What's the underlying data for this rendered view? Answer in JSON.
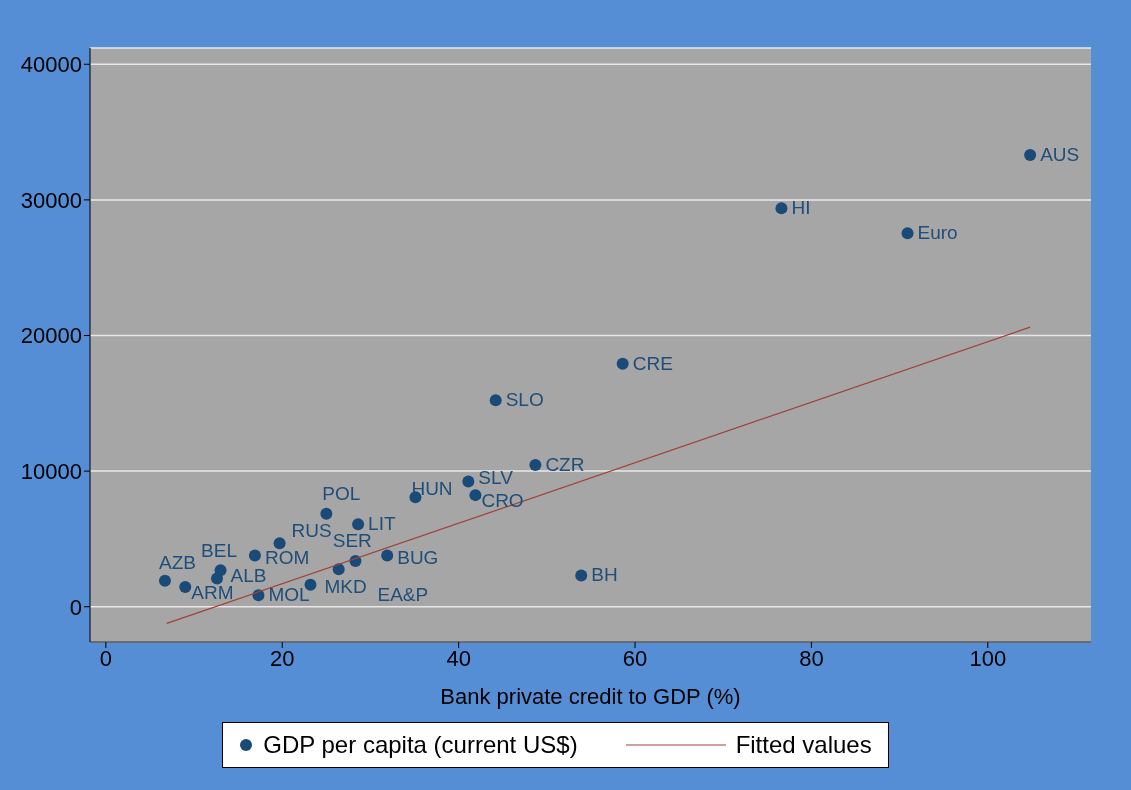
{
  "chart_data": {
    "type": "scatter",
    "xlabel": "Bank private credit to GDP (%)",
    "xlim": [
      -1.8,
      111.7
    ],
    "xticks": [
      0,
      20,
      40,
      60,
      80,
      100
    ],
    "ylim": [
      -2600,
      41200
    ],
    "yticks": [
      0,
      10000,
      20000,
      30000,
      40000
    ],
    "grid": "y",
    "legend": "bottom",
    "series": [
      {
        "name": "GDP per capita (current US$)",
        "marker": "circle",
        "color": "#1a4a78",
        "x": [
          6.7,
          9.0,
          13.0,
          12.6,
          16.9,
          19.7,
          17.3,
          23.2,
          25.0,
          26.4,
          28.3,
          28.6,
          31.9,
          35.1,
          41.1,
          41.9,
          48.7,
          53.9,
          44.2,
          58.6,
          76.6,
          90.9,
          104.8
        ],
        "values": [
          1920,
          1460,
          2690,
          2080,
          3770,
          4690,
          850,
          1620,
          6850,
          2770,
          3380,
          6080,
          3770,
          8080,
          9230,
          8230,
          10460,
          2310,
          15230,
          17920,
          29380,
          27540,
          33310
        ],
        "value_labels": [
          "AZB",
          "ARM",
          "ALB",
          "BEL",
          "ROM",
          "RUS",
          "MOL",
          "MKD",
          "POL",
          "SER",
          "EA&P",
          "LIT",
          "BUG",
          "HUN",
          "SLV",
          "CRO",
          "CZR",
          "BH",
          "SLO",
          "CRE",
          "HI",
          "Euro",
          "AUS"
        ]
      },
      {
        "name": "Fitted values",
        "type": "line",
        "marker": "none",
        "color": "#a0403a",
        "x": [
          6.9,
          104.8
        ],
        "values": [
          -1230,
          20620
        ]
      }
    ]
  }
}
